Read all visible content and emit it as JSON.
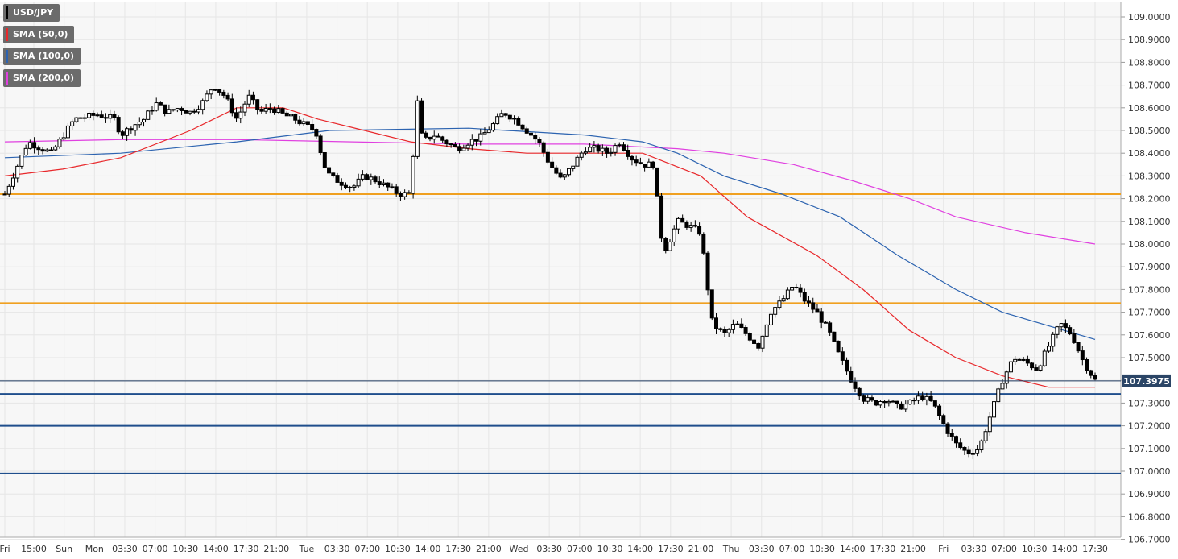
{
  "chart_data": {
    "type": "candlestick",
    "symbol": "USD/JPY",
    "ylim": [
      106.7,
      109.05
    ],
    "y_ticks": [
      "109.0000",
      "108.9000",
      "108.8000",
      "108.7000",
      "108.6000",
      "108.5000",
      "108.4000",
      "108.3000",
      "108.2000",
      "108.1000",
      "108.0000",
      "107.9000",
      "107.8000",
      "107.7000",
      "107.6000",
      "107.5000",
      "107.4000",
      "107.3000",
      "107.2000",
      "107.1000",
      "107.0000",
      "106.9000",
      "106.8000",
      "106.7000"
    ],
    "x_ticks": [
      "Fri",
      "15:00",
      "Sun",
      "Mon",
      "03:30",
      "07:00",
      "10:30",
      "14:00",
      "17:30",
      "21:00",
      "Tue",
      "03:30",
      "07:00",
      "10:30",
      "14:00",
      "17:30",
      "21:00",
      "Wed",
      "03:30",
      "07:00",
      "10:30",
      "14:00",
      "17:30",
      "21:00",
      "Thu",
      "03:30",
      "07:00",
      "10:30",
      "14:00",
      "17:30",
      "21:00",
      "Fri",
      "03:30",
      "07:00",
      "10:30",
      "14:00",
      "17:30"
    ],
    "last_price": "107.3975",
    "legend": [
      {
        "label": "USD/JPY",
        "color": "#000000"
      },
      {
        "label": "SMA (50,0)",
        "color": "#e8282b"
      },
      {
        "label": "SMA (100,0)",
        "color": "#2c63b0"
      },
      {
        "label": "SMA (200,0)",
        "color": "#e040e0"
      }
    ],
    "horizontal_levels": [
      {
        "value": 108.22,
        "color": "#f0a020",
        "kind": "resistance"
      },
      {
        "value": 107.74,
        "color": "#f0a020",
        "kind": "resistance"
      },
      {
        "value": 107.34,
        "color": "#1f4e8c",
        "kind": "support"
      },
      {
        "value": 107.2,
        "color": "#1f4e8c",
        "kind": "support"
      },
      {
        "value": 106.99,
        "color": "#1f4e8c",
        "kind": "support"
      }
    ],
    "price_path": [
      [
        0,
        108.22
      ],
      [
        2,
        108.45
      ],
      [
        4,
        108.4
      ],
      [
        6,
        108.55
      ],
      [
        8,
        108.57
      ],
      [
        9.5,
        108.55
      ],
      [
        10,
        108.48
      ],
      [
        11,
        108.52
      ],
      [
        12,
        108.55
      ],
      [
        13,
        108.62
      ],
      [
        14,
        108.58
      ],
      [
        15,
        108.6
      ],
      [
        16,
        108.58
      ],
      [
        17,
        108.62
      ],
      [
        18,
        108.7
      ],
      [
        19,
        108.65
      ],
      [
        20,
        108.55
      ],
      [
        21,
        108.65
      ],
      [
        22,
        108.58
      ],
      [
        23,
        108.6
      ],
      [
        24,
        108.57
      ],
      [
        25,
        108.55
      ],
      [
        26,
        108.52
      ],
      [
        26.8,
        108.5
      ],
      [
        27.5,
        108.35
      ],
      [
        28,
        108.3
      ],
      [
        29,
        108.27
      ],
      [
        30,
        108.25
      ],
      [
        31,
        108.3
      ],
      [
        32,
        108.28
      ],
      [
        33,
        108.25
      ],
      [
        34,
        108.22
      ],
      [
        35,
        108.22
      ],
      [
        35.5,
        108.65
      ],
      [
        36,
        108.45
      ],
      [
        37,
        108.48
      ],
      [
        38,
        108.45
      ],
      [
        39,
        108.42
      ],
      [
        40,
        108.45
      ],
      [
        41,
        108.47
      ],
      [
        42,
        108.52
      ],
      [
        43,
        108.58
      ],
      [
        44,
        108.55
      ],
      [
        45,
        108.5
      ],
      [
        46,
        108.45
      ],
      [
        47,
        108.35
      ],
      [
        48,
        108.28
      ],
      [
        49,
        108.35
      ],
      [
        50,
        108.42
      ],
      [
        51,
        108.42
      ],
      [
        52,
        108.4
      ],
      [
        53,
        108.45
      ],
      [
        54,
        108.38
      ],
      [
        55,
        108.35
      ],
      [
        56,
        108.35
      ],
      [
        56.5,
        108.05
      ],
      [
        57,
        107.98
      ],
      [
        58,
        108.1
      ],
      [
        59,
        108.08
      ],
      [
        60,
        108.05
      ],
      [
        60.5,
        107.85
      ],
      [
        61,
        107.65
      ],
      [
        62,
        107.6
      ],
      [
        63,
        107.65
      ],
      [
        64,
        107.6
      ],
      [
        65,
        107.55
      ],
      [
        66,
        107.7
      ],
      [
        67,
        107.75
      ],
      [
        68,
        107.82
      ],
      [
        69,
        107.75
      ],
      [
        70,
        107.7
      ],
      [
        71,
        107.62
      ],
      [
        72,
        107.5
      ],
      [
        73,
        107.4
      ],
      [
        74,
        107.32
      ],
      [
        75,
        107.3
      ],
      [
        76,
        107.32
      ],
      [
        77,
        107.28
      ],
      [
        78,
        107.3
      ],
      [
        79,
        107.33
      ],
      [
        80,
        107.3
      ],
      [
        81,
        107.2
      ],
      [
        82,
        107.12
      ],
      [
        83,
        107.08
      ],
      [
        84,
        107.1
      ],
      [
        85,
        107.25
      ],
      [
        86,
        107.4
      ],
      [
        87,
        107.5
      ],
      [
        88,
        107.48
      ],
      [
        89,
        107.45
      ],
      [
        90,
        107.55
      ],
      [
        91,
        107.65
      ],
      [
        92,
        107.6
      ],
      [
        93,
        107.48
      ],
      [
        94,
        107.4
      ]
    ],
    "sma50": [
      [
        0,
        108.3
      ],
      [
        5,
        108.33
      ],
      [
        10,
        108.38
      ],
      [
        16,
        108.5
      ],
      [
        20,
        108.6
      ],
      [
        24,
        108.6
      ],
      [
        27,
        108.55
      ],
      [
        31,
        108.5
      ],
      [
        35,
        108.45
      ],
      [
        40,
        108.42
      ],
      [
        45,
        108.4
      ],
      [
        50,
        108.4
      ],
      [
        55,
        108.4
      ],
      [
        60,
        108.3
      ],
      [
        64,
        108.12
      ],
      [
        70,
        107.95
      ],
      [
        74,
        107.8
      ],
      [
        78,
        107.62
      ],
      [
        82,
        107.5
      ],
      [
        86,
        107.42
      ],
      [
        90,
        107.37
      ],
      [
        94,
        107.37
      ]
    ],
    "sma100": [
      [
        0,
        108.38
      ],
      [
        10,
        108.4
      ],
      [
        20,
        108.45
      ],
      [
        28,
        108.5
      ],
      [
        40,
        108.51
      ],
      [
        50,
        108.48
      ],
      [
        55,
        108.45
      ],
      [
        58,
        108.4
      ],
      [
        62,
        108.3
      ],
      [
        67,
        108.22
      ],
      [
        72,
        108.12
      ],
      [
        77,
        107.95
      ],
      [
        82,
        107.8
      ],
      [
        86,
        107.7
      ],
      [
        94,
        107.58
      ]
    ],
    "sma200": [
      [
        0,
        108.45
      ],
      [
        10,
        108.46
      ],
      [
        20,
        108.46
      ],
      [
        30,
        108.45
      ],
      [
        40,
        108.44
      ],
      [
        50,
        108.44
      ],
      [
        58,
        108.42
      ],
      [
        62,
        108.4
      ],
      [
        68,
        108.35
      ],
      [
        73,
        108.28
      ],
      [
        78,
        108.2
      ],
      [
        82,
        108.12
      ],
      [
        88,
        108.05
      ],
      [
        94,
        108.0
      ]
    ]
  }
}
